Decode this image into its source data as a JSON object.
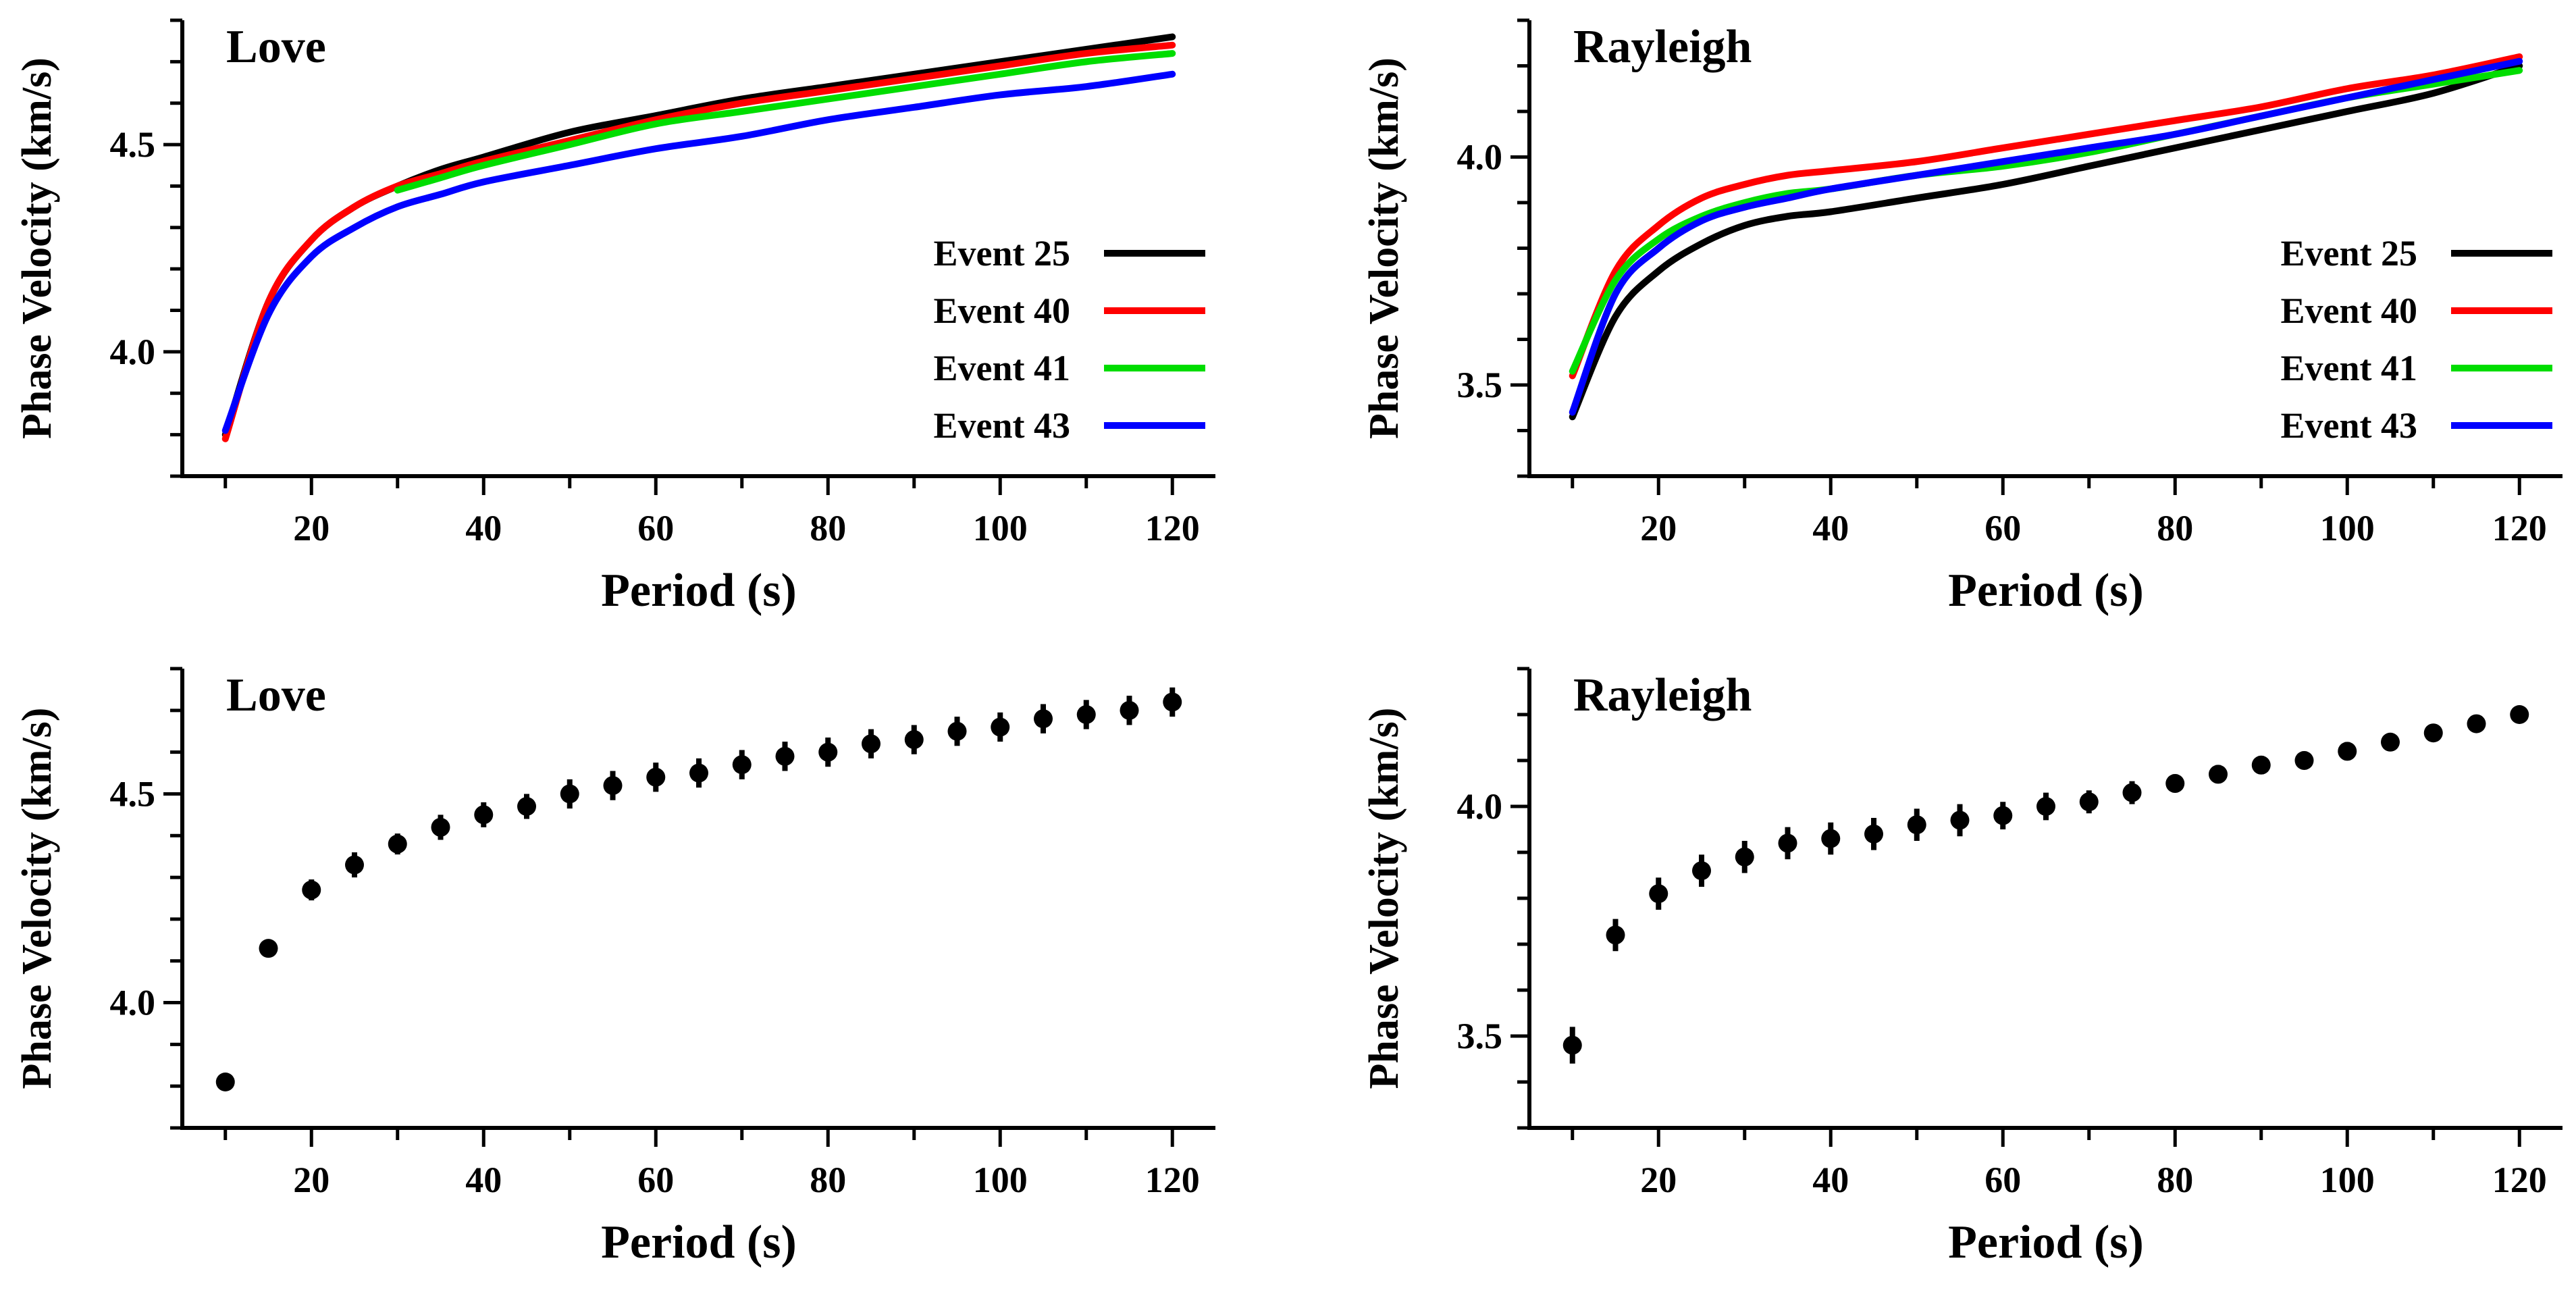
{
  "figure": {
    "colors": {
      "Event 25": "#000000",
      "Event 40": "#ff0000",
      "Event 41": "#00dd00",
      "Event 43": "#0000ff"
    }
  },
  "chart_data": [
    {
      "type": "line",
      "title": "Love",
      "xlabel": "Period (s)",
      "ylabel": "Phase Velocity (km/s)",
      "xlim": [
        5,
        125
      ],
      "ylim": [
        3.7,
        4.8
      ],
      "xticks": [
        20,
        40,
        60,
        80,
        100,
        120
      ],
      "yticks": [
        4.0,
        4.5
      ],
      "legend": "right",
      "series": [
        {
          "name": "Event 25",
          "color": "#000000",
          "x": [
            10,
            15,
            20,
            25,
            30,
            35,
            40,
            50,
            60,
            70,
            80,
            90,
            100,
            110,
            120
          ],
          "values": [
            3.8,
            4.12,
            4.27,
            4.35,
            4.4,
            4.44,
            4.47,
            4.53,
            4.57,
            4.61,
            4.64,
            4.67,
            4.7,
            4.73,
            4.76
          ]
        },
        {
          "name": "Event 40",
          "color": "#ff0000",
          "x": [
            10,
            15,
            20,
            25,
            30,
            35,
            40,
            50,
            60,
            70,
            80,
            90,
            100,
            110,
            120
          ],
          "values": [
            3.79,
            4.12,
            4.27,
            4.35,
            4.4,
            4.43,
            4.46,
            4.51,
            4.56,
            4.6,
            4.63,
            4.66,
            4.69,
            4.72,
            4.74
          ]
        },
        {
          "name": "Event 41",
          "color": "#00dd00",
          "x": [
            30,
            35,
            40,
            50,
            60,
            70,
            80,
            90,
            100,
            110,
            120
          ],
          "values": [
            4.39,
            4.42,
            4.45,
            4.5,
            4.55,
            4.58,
            4.61,
            4.64,
            4.67,
            4.7,
            4.72
          ]
        },
        {
          "name": "Event 43",
          "color": "#0000ff",
          "x": [
            10,
            15,
            20,
            25,
            30,
            35,
            40,
            50,
            60,
            70,
            80,
            90,
            100,
            110,
            120
          ],
          "values": [
            3.81,
            4.09,
            4.23,
            4.3,
            4.35,
            4.38,
            4.41,
            4.45,
            4.49,
            4.52,
            4.56,
            4.59,
            4.62,
            4.64,
            4.67
          ]
        }
      ]
    },
    {
      "type": "line",
      "title": "Rayleigh",
      "xlabel": "Period (s)",
      "ylabel": "Phase Velocity (km/s)",
      "xlim": [
        5,
        125
      ],
      "ylim": [
        3.3,
        4.3
      ],
      "xticks": [
        20,
        40,
        60,
        80,
        100,
        120
      ],
      "yticks": [
        3.5,
        4.0
      ],
      "legend": "right",
      "series": [
        {
          "name": "Event 25",
          "color": "#000000",
          "x": [
            10,
            15,
            20,
            25,
            30,
            35,
            40,
            50,
            60,
            70,
            80,
            90,
            100,
            110,
            120
          ],
          "values": [
            3.43,
            3.65,
            3.75,
            3.81,
            3.85,
            3.87,
            3.88,
            3.91,
            3.94,
            3.98,
            4.02,
            4.06,
            4.1,
            4.14,
            4.2
          ]
        },
        {
          "name": "Event 40",
          "color": "#ff0000",
          "x": [
            10,
            15,
            20,
            25,
            30,
            35,
            40,
            50,
            60,
            70,
            80,
            90,
            100,
            110,
            120
          ],
          "values": [
            3.52,
            3.75,
            3.85,
            3.91,
            3.94,
            3.96,
            3.97,
            3.99,
            4.02,
            4.05,
            4.08,
            4.11,
            4.15,
            4.18,
            4.22
          ]
        },
        {
          "name": "Event 41",
          "color": "#00dd00",
          "x": [
            10,
            15,
            20,
            25,
            30,
            35,
            40,
            50,
            60,
            70,
            80,
            90,
            100,
            110,
            120
          ],
          "values": [
            3.53,
            3.73,
            3.82,
            3.87,
            3.9,
            3.92,
            3.93,
            3.96,
            3.98,
            4.01,
            4.05,
            4.09,
            4.13,
            4.16,
            4.19
          ]
        },
        {
          "name": "Event 43",
          "color": "#0000ff",
          "x": [
            10,
            15,
            20,
            25,
            30,
            35,
            40,
            50,
            60,
            70,
            80,
            90,
            100,
            110,
            120
          ],
          "values": [
            3.44,
            3.7,
            3.8,
            3.86,
            3.89,
            3.91,
            3.93,
            3.96,
            3.99,
            4.02,
            4.05,
            4.09,
            4.13,
            4.17,
            4.21
          ]
        }
      ]
    },
    {
      "type": "scatter",
      "title": "Love",
      "xlabel": "Period (s)",
      "ylabel": "Phase Velocity (km/s)",
      "xlim": [
        5,
        125
      ],
      "ylim": [
        3.7,
        4.8
      ],
      "xticks": [
        20,
        40,
        60,
        80,
        100,
        120
      ],
      "yticks": [
        4.0,
        4.5
      ],
      "x": [
        10,
        15,
        20,
        25,
        30,
        35,
        40,
        45,
        50,
        55,
        60,
        65,
        70,
        75,
        80,
        85,
        90,
        95,
        100,
        105,
        110,
        115,
        120
      ],
      "values": [
        3.81,
        4.13,
        4.27,
        4.33,
        4.38,
        4.42,
        4.45,
        4.47,
        4.5,
        4.52,
        4.54,
        4.55,
        4.57,
        4.59,
        4.6,
        4.62,
        4.63,
        4.65,
        4.66,
        4.68,
        4.69,
        4.7,
        4.72
      ],
      "errors": [
        0.02,
        0.02,
        0.025,
        0.03,
        0.025,
        0.03,
        0.03,
        0.03,
        0.035,
        0.035,
        0.035,
        0.035,
        0.035,
        0.035,
        0.035,
        0.035,
        0.035,
        0.035,
        0.035,
        0.035,
        0.035,
        0.035,
        0.035
      ]
    },
    {
      "type": "scatter",
      "title": "Rayleigh",
      "xlabel": "Period (s)",
      "ylabel": "Phase Velocity (km/s)",
      "xlim": [
        5,
        125
      ],
      "ylim": [
        3.3,
        4.3
      ],
      "xticks": [
        20,
        40,
        60,
        80,
        100,
        120
      ],
      "yticks": [
        3.5,
        4.0
      ],
      "x": [
        10,
        15,
        20,
        25,
        30,
        35,
        40,
        45,
        50,
        55,
        60,
        65,
        70,
        75,
        80,
        85,
        90,
        95,
        100,
        105,
        110,
        115,
        120
      ],
      "values": [
        3.48,
        3.72,
        3.81,
        3.86,
        3.89,
        3.92,
        3.93,
        3.94,
        3.96,
        3.97,
        3.98,
        4.0,
        4.01,
        4.03,
        4.05,
        4.07,
        4.09,
        4.1,
        4.12,
        4.14,
        4.16,
        4.18,
        4.2
      ],
      "errors": [
        0.04,
        0.035,
        0.035,
        0.035,
        0.035,
        0.035,
        0.035,
        0.035,
        0.035,
        0.035,
        0.03,
        0.03,
        0.025,
        0.025,
        0.02,
        0.02,
        0.02,
        0.02,
        0.02,
        0.015,
        0.015,
        0.015,
        0.015
      ]
    }
  ]
}
